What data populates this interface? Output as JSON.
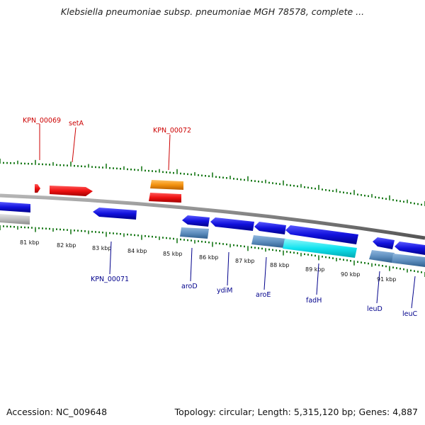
{
  "title": "Klebsiella pneumoniae subsp. pneumoniae MGH 78578, complete ...",
  "footer": {
    "accession": "Accession: NC_009648",
    "summary": "Topology: circular; Length: 5,315,120 bp; Genes: 4,887"
  },
  "colors": {
    "top_label": "#cc0000",
    "bottom_label": "#00008b",
    "tick": "#1a7a1a",
    "backbone": "#808080",
    "forward_gene": "#ee1111",
    "reverse_gene": "#1111dd",
    "cds_orange": "#f39210",
    "cds_steel": "#5f8fbf",
    "cds_cyan": "#12e3ef",
    "cds_grey": "#bfbfbf"
  },
  "scale": {
    "unit": "kbp",
    "labels": [
      "81 kbp",
      "82 kbp",
      "83 kbp",
      "84 kbp",
      "85 kbp",
      "86 kbp",
      "87 kbp",
      "88 kbp",
      "89 kbp",
      "90 kbp",
      "91 kbp"
    ]
  },
  "top_labels": [
    "KPN_00069",
    "setA",
    "KPN_00072"
  ],
  "bottom_labels": [
    "KPN_00071",
    "aroD",
    "ydiM",
    "aroE",
    "fadH",
    "leuD",
    "leuC"
  ]
}
